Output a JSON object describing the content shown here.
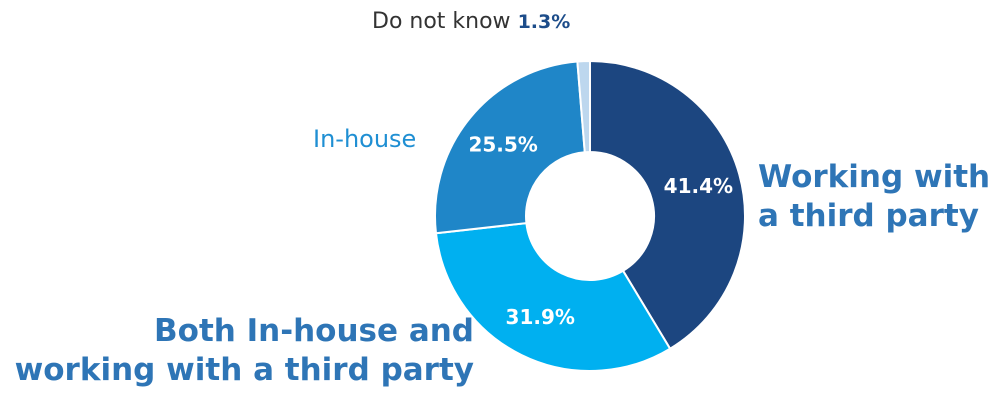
{
  "chart_data": {
    "type": "pie",
    "donut": true,
    "categories": [
      "Working with a third party",
      "Both In-house and working with a third party",
      "In-house",
      "Do not know"
    ],
    "values": [
      41.4,
      31.9,
      25.5,
      1.3
    ],
    "data_labels": [
      "41.4%",
      "31.9%",
      "25.5%",
      "1.3%"
    ],
    "colors": [
      "#1c4680",
      "#00b0f0",
      "#1f86c8",
      "#bdd7ee"
    ],
    "label_lines": {
      "third_party": [
        "Working with",
        "a third party"
      ],
      "both": [
        "Both In-house and",
        "working with a third party"
      ]
    },
    "title": "",
    "legend": "none"
  }
}
